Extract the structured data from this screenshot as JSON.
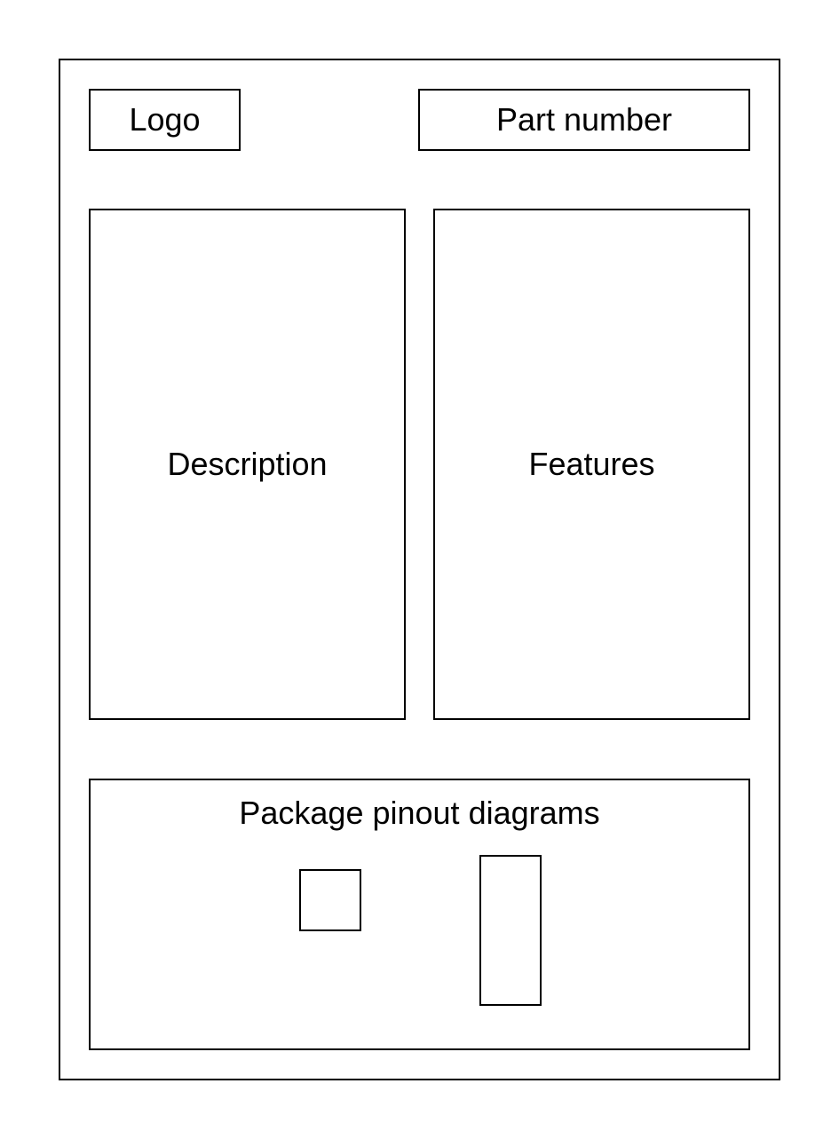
{
  "header": {
    "logo_label": "Logo",
    "part_number_label": "Part number"
  },
  "main": {
    "description_label": "Description",
    "features_label": "Features"
  },
  "package": {
    "title": "Package pinout diagrams"
  },
  "colors": {
    "stroke": "#000000",
    "background": "#ffffff"
  }
}
